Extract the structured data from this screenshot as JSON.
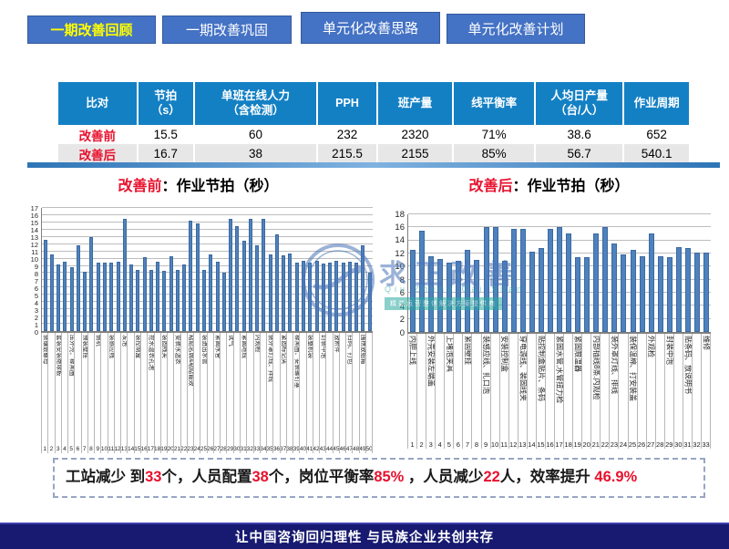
{
  "tabs": [
    {
      "label": "一期改善回顾",
      "active": true
    },
    {
      "label": "一期改善巩固",
      "active": false
    },
    {
      "label": "单元化改善思路",
      "active": false
    },
    {
      "label": "单元化改善计划",
      "active": false
    }
  ],
  "table": {
    "columns": [
      "比对",
      "节拍\n（s）",
      "单班在线人力\n（含检测）",
      "PPH",
      "班产量",
      "线平衡率",
      "人均日产量\n（台/人）",
      "作业周期"
    ],
    "rows": [
      {
        "label": "改善前",
        "values": [
          "15.5",
          "60",
          "232",
          "2320",
          "71%",
          "38.6",
          "652"
        ],
        "shade": false
      },
      {
        "label": "改善后",
        "values": [
          "16.7",
          "38",
          "215.5",
          "2155",
          "85%",
          "56.7",
          "540.1"
        ],
        "shade": true
      }
    ]
  },
  "chart_data": [
    {
      "type": "bar",
      "title_prefix": "改善前",
      "title_rest": "：作业节拍（秒）",
      "ylabel": "",
      "xlabel": "",
      "ylim": [
        0,
        17
      ],
      "ytick_step": 1,
      "grid": true,
      "legend": "none",
      "bar_color": "#4f81bd",
      "x_numbering": "1..50",
      "values": [
        12.6,
        10.6,
        9.2,
        9.6,
        8.8,
        11.8,
        8.2,
        13.0,
        9.4,
        9.5,
        9.4,
        9.6,
        15.5,
        9.2,
        8.5,
        10.2,
        8.5,
        9.6,
        8.3,
        10.3,
        8.5,
        9.2,
        15.2,
        14.8,
        8.4,
        10.6,
        9.6,
        8.1,
        15.5,
        14.5,
        12.5,
        15.5,
        11.9,
        15.5,
        10.6,
        13.4,
        10.5,
        10.7,
        9.5,
        9.7,
        9.5,
        9.7,
        9.3,
        9.5,
        9.7,
        9.4,
        9.6,
        9.5,
        11.9,
        8.1
      ],
      "xlabels": [
        "装镶嵌螺母",
        "",
        "套装安装绝缘板",
        "",
        "压外壳、橡黑圈",
        "",
        "预装壁挂",
        "",
        "倒机",
        "",
        "装感应线",
        "",
        "发泡",
        "",
        "装控制盒",
        "",
        "挖水温表孔泡",
        "",
        "装固线夹",
        "",
        "安装水温表",
        "",
        "粘贴名牌&粘贴能效",
        "",
        "装进出水管",
        "",
        "紧固水管",
        "",
        "试气",
        "",
        "紧固地线",
        "",
        "内观检",
        "",
        "装外罩灯线、拌线",
        "",
        "紧固标记夹",
        "",
        "橡黑圈、安装螺钉塞",
        "",
        "装整机袋",
        "",
        "封装中泡",
        "",
        "放附件",
        "",
        "扫码、打包",
        "",
        "围楞放纸箱",
        ""
      ]
    },
    {
      "type": "bar",
      "title_prefix": "改善后",
      "title_rest": "：作业节拍（秒）",
      "ylabel": "",
      "xlabel": "",
      "ylim": [
        0,
        18
      ],
      "ytick_step": 2,
      "grid": true,
      "legend": "none",
      "bar_color": "#4f81bd",
      "x_numbering": "1..33",
      "values": [
        12.6,
        15.5,
        11.6,
        11.2,
        10.6,
        10.9,
        12.6,
        11.0,
        16.0,
        16.0,
        10.9,
        15.7,
        15.8,
        12.3,
        12.8,
        15.7,
        16.0,
        15.1,
        11.5,
        11.5,
        15.1,
        16.0,
        13.6,
        11.8,
        12.6,
        11.6,
        15.1,
        11.6,
        11.5,
        13.0,
        12.8,
        12.1,
        12.1
      ],
      "xlabels": [
        "内胆上线",
        "",
        "外壳安装左端盖",
        "",
        "上堵泡夹具",
        "",
        "紧固壁挂",
        "",
        "装感应线、扎口泡",
        "",
        "安装控制盒",
        "",
        "穿电源线、装固线夹",
        "",
        "贴控制盒贴片、条码",
        "",
        "紧固水管,水管扭力检",
        "",
        "紧固限温器",
        "",
        "内部插线8条.内观检",
        "",
        "装外罩灯线、排线",
        "",
        "装保温棉、打安装盖",
        "",
        "外观检",
        "",
        "封装中泡",
        "",
        "贴条码、放说明书",
        "",
        "维修"
      ]
    }
  ],
  "watermark": {
    "name": "求正改善",
    "sub": "Qiu Zheng Gai Shan",
    "tagline": "精益运营整体解决方案提供商"
  },
  "summary": {
    "segments": [
      {
        "t": "工站减少 到",
        "c": "k"
      },
      {
        "t": "33",
        "c": "r"
      },
      {
        "t": "个，人员配置",
        "c": "k"
      },
      {
        "t": "38",
        "c": "r"
      },
      {
        "t": "个，岗位平衡率",
        "c": "k"
      },
      {
        "t": "85%",
        "c": "r"
      },
      {
        "t": " ，人员减少",
        "c": "k"
      },
      {
        "t": "22",
        "c": "r"
      },
      {
        "t": "人，效率提升 ",
        "c": "k"
      },
      {
        "t": "46.9%",
        "c": "r"
      }
    ]
  },
  "footer": {
    "text": "让中国咨询回归理性  与民族企业共创共存"
  },
  "colors": {
    "tab_blue": "#4472c4",
    "tab_active_text": "#ffff00",
    "table_header": "#1480c4",
    "bar": "#4f81bd",
    "red": "#e8112d",
    "footer_navy": "#171a70"
  }
}
